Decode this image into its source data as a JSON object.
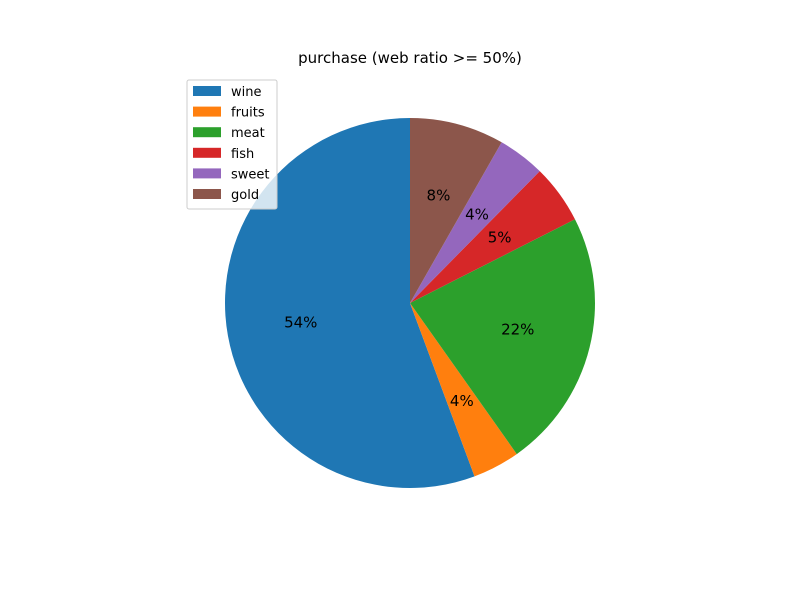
{
  "chart_data": {
    "type": "pie",
    "title": "purchase (web ratio >= 50%)",
    "categories": [
      "wine",
      "fruits",
      "meat",
      "fish",
      "sweet",
      "gold"
    ],
    "values": [
      54,
      4,
      22,
      5,
      4,
      8
    ],
    "value_labels": [
      "54%",
      "4%",
      "22%",
      "5%",
      "4%",
      "8%"
    ],
    "colors": [
      "#1f77b4",
      "#ff7f0e",
      "#2ca02c",
      "#d62728",
      "#9467bd",
      "#8c564b"
    ],
    "start_angle_deg": 90,
    "direction": "counterclockwise",
    "legend": {
      "placement": "upper-left"
    }
  }
}
